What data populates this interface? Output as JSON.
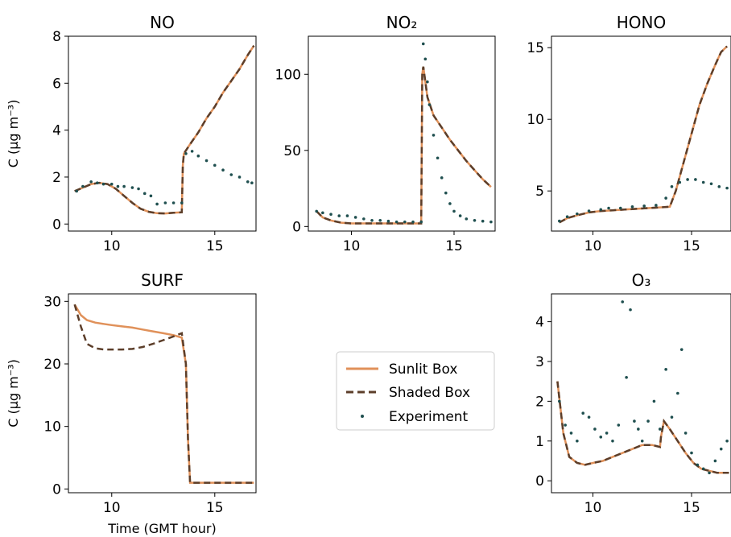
{
  "figure": {
    "time_label": "Time (GMT hour)",
    "legend": {
      "placement": "center",
      "entries": [
        {
          "label": "Sunlit Box",
          "style": "solid",
          "color": "#e0915a"
        },
        {
          "label": "Shaded Box",
          "style": "dashed",
          "color": "#5c3e2a"
        },
        {
          "label": "Experiment",
          "style": "dots",
          "color": "#1f4f4f"
        }
      ]
    }
  },
  "chart_data": [
    {
      "type": "line",
      "title": "NO",
      "ylabel": "C (μg m⁻³)",
      "xlabel": "",
      "xlim": [
        7.9,
        17.0
      ],
      "ylim": [
        -0.3,
        8.0
      ],
      "xticks": [
        10,
        15
      ],
      "yticks": [
        0,
        2,
        4,
        6,
        8
      ],
      "series": [
        {
          "name": "Sunlit Box",
          "x": [
            8.2,
            8.6,
            9.0,
            9.4,
            9.8,
            10.2,
            10.6,
            11.0,
            11.4,
            11.8,
            12.2,
            12.6,
            13.0,
            13.4,
            13.45,
            13.5,
            13.8,
            14.2,
            14.6,
            15.0,
            15.4,
            15.8,
            16.2,
            16.6,
            16.9
          ],
          "y": [
            1.4,
            1.55,
            1.7,
            1.75,
            1.7,
            1.5,
            1.2,
            0.9,
            0.65,
            0.52,
            0.46,
            0.45,
            0.48,
            0.5,
            2.5,
            3.0,
            3.4,
            3.9,
            4.5,
            5.0,
            5.6,
            6.1,
            6.6,
            7.2,
            7.6
          ]
        },
        {
          "name": "Shaded Box",
          "x": [
            8.2,
            8.6,
            9.0,
            9.4,
            9.8,
            10.2,
            10.6,
            11.0,
            11.4,
            11.8,
            12.2,
            12.6,
            13.0,
            13.4,
            13.45,
            13.5,
            13.8,
            14.2,
            14.6,
            15.0,
            15.4,
            15.8,
            16.2,
            16.6,
            16.9
          ],
          "y": [
            1.4,
            1.55,
            1.7,
            1.75,
            1.7,
            1.5,
            1.2,
            0.9,
            0.65,
            0.52,
            0.46,
            0.45,
            0.48,
            0.5,
            2.5,
            3.0,
            3.4,
            3.9,
            4.5,
            5.0,
            5.6,
            6.1,
            6.6,
            7.2,
            7.6
          ]
        },
        {
          "name": "Experiment",
          "x": [
            8.3,
            8.6,
            9.0,
            9.3,
            9.6,
            10.0,
            10.3,
            10.6,
            11.0,
            11.3,
            11.6,
            11.9,
            12.2,
            12.6,
            13.0,
            13.4,
            13.6,
            13.9,
            14.2,
            14.6,
            15.0,
            15.4,
            15.8,
            16.2,
            16.6,
            16.8
          ],
          "y": [
            1.4,
            1.6,
            1.8,
            1.75,
            1.7,
            1.7,
            1.6,
            1.6,
            1.55,
            1.5,
            1.3,
            1.2,
            0.85,
            0.9,
            0.9,
            0.9,
            3.0,
            3.1,
            2.9,
            2.7,
            2.5,
            2.3,
            2.1,
            2.0,
            1.8,
            1.75
          ]
        }
      ]
    },
    {
      "type": "line",
      "title": "NO₂",
      "ylabel": "",
      "xlabel": "",
      "xlim": [
        7.9,
        17.0
      ],
      "ylim": [
        -3,
        125
      ],
      "xticks": [
        10,
        15
      ],
      "yticks": [
        0,
        50,
        100
      ],
      "series": [
        {
          "name": "Sunlit Box",
          "x": [
            8.3,
            8.6,
            9.0,
            9.5,
            10.0,
            10.5,
            11.0,
            11.5,
            12.0,
            12.5,
            13.0,
            13.4,
            13.45,
            13.5,
            13.7,
            14.0,
            14.4,
            14.8,
            15.2,
            15.6,
            16.0,
            16.4,
            16.8
          ],
          "y": [
            10,
            6,
            4,
            2.5,
            2,
            2,
            2,
            2,
            2,
            2,
            2,
            2,
            100,
            105,
            85,
            73,
            65,
            57,
            50,
            43,
            37,
            31,
            26
          ]
        },
        {
          "name": "Shaded Box",
          "x": [
            8.3,
            8.6,
            9.0,
            9.5,
            10.0,
            10.5,
            11.0,
            11.5,
            12.0,
            12.5,
            13.0,
            13.4,
            13.45,
            13.5,
            13.7,
            14.0,
            14.4,
            14.8,
            15.2,
            15.6,
            16.0,
            16.4,
            16.8
          ],
          "y": [
            10,
            6,
            4,
            2.5,
            2,
            2,
            2,
            2,
            2,
            2,
            2,
            2,
            100,
            105,
            85,
            73,
            65,
            57,
            50,
            43,
            37,
            31,
            26
          ]
        },
        {
          "name": "Experiment",
          "x": [
            8.3,
            8.6,
            9.0,
            9.4,
            9.8,
            10.2,
            10.6,
            11.0,
            11.4,
            11.8,
            12.2,
            12.6,
            13.0,
            13.4,
            13.5,
            13.6,
            13.7,
            13.8,
            14.0,
            14.2,
            14.4,
            14.6,
            14.8,
            15.0,
            15.3,
            15.6,
            16.0,
            16.4,
            16.8
          ],
          "y": [
            10,
            9,
            8,
            7,
            7,
            6,
            5,
            4,
            4,
            3.5,
            3,
            3,
            3,
            3,
            120,
            110,
            95,
            80,
            60,
            45,
            32,
            22,
            15,
            10,
            7,
            5,
            4,
            3.5,
            3
          ]
        }
      ]
    },
    {
      "type": "line",
      "title": "HONO",
      "ylabel": "",
      "xlabel": "",
      "xlim": [
        7.9,
        17.0
      ],
      "ylim": [
        2.2,
        15.8
      ],
      "xticks": [
        10,
        15
      ],
      "yticks": [
        5,
        10,
        15
      ],
      "series": [
        {
          "name": "Sunlit Box",
          "x": [
            8.3,
            8.7,
            9.2,
            9.8,
            10.4,
            11.0,
            11.6,
            12.2,
            12.8,
            13.4,
            13.9,
            14.2,
            14.6,
            15.0,
            15.4,
            15.8,
            16.2,
            16.5,
            16.8
          ],
          "y": [
            2.8,
            3.1,
            3.3,
            3.5,
            3.6,
            3.65,
            3.7,
            3.75,
            3.8,
            3.85,
            3.9,
            5.0,
            7.0,
            9.0,
            11.0,
            12.5,
            13.8,
            14.7,
            15.1
          ]
        },
        {
          "name": "Shaded Box",
          "x": [
            8.3,
            8.7,
            9.2,
            9.8,
            10.4,
            11.0,
            11.6,
            12.2,
            12.8,
            13.4,
            13.9,
            14.2,
            14.6,
            15.0,
            15.4,
            15.8,
            16.2,
            16.5,
            16.8
          ],
          "y": [
            2.8,
            3.1,
            3.3,
            3.5,
            3.6,
            3.65,
            3.7,
            3.75,
            3.8,
            3.85,
            3.9,
            5.0,
            7.0,
            9.0,
            11.0,
            12.5,
            13.8,
            14.7,
            15.1
          ]
        },
        {
          "name": "Experiment",
          "x": [
            8.3,
            8.7,
            9.2,
            9.8,
            10.4,
            10.8,
            11.4,
            12.0,
            12.6,
            13.2,
            13.7,
            14.0,
            14.4,
            14.8,
            15.2,
            15.6,
            16.0,
            16.4,
            16.8
          ],
          "y": [
            2.9,
            3.2,
            3.4,
            3.6,
            3.7,
            3.8,
            3.8,
            3.9,
            3.95,
            4.0,
            4.5,
            5.3,
            5.6,
            5.8,
            5.8,
            5.6,
            5.5,
            5.3,
            5.2
          ]
        }
      ]
    },
    {
      "type": "line",
      "title": "SURF",
      "ylabel": "C (μg m⁻³)",
      "xlabel": "Time (GMT hour)",
      "xlim": [
        7.9,
        17.0
      ],
      "ylim": [
        -0.6,
        31.2
      ],
      "xticks": [
        10,
        15
      ],
      "yticks": [
        0,
        10,
        20,
        30
      ],
      "series": [
        {
          "name": "Sunlit Box",
          "x": [
            8.2,
            8.5,
            8.8,
            9.2,
            9.6,
            10.0,
            10.5,
            11.0,
            11.5,
            12.0,
            12.5,
            13.0,
            13.4,
            13.6,
            13.7,
            13.8,
            14.0,
            14.5,
            15.0,
            15.5,
            16.0,
            16.5,
            16.9
          ],
          "y": [
            29.5,
            27.8,
            27.0,
            26.6,
            26.4,
            26.2,
            26.0,
            25.8,
            25.5,
            25.2,
            24.9,
            24.6,
            24.2,
            20.0,
            8.0,
            1.0,
            1.0,
            1.0,
            1.0,
            1.0,
            1.0,
            1.0,
            1.0
          ]
        },
        {
          "name": "Shaded Box",
          "x": [
            8.2,
            8.5,
            8.8,
            9.2,
            9.6,
            10.0,
            10.5,
            11.0,
            11.5,
            12.0,
            12.5,
            13.0,
            13.4,
            13.6,
            13.7,
            13.8,
            14.0,
            14.5,
            15.0,
            15.5,
            16.0,
            16.5,
            16.9
          ],
          "y": [
            29.5,
            26.0,
            23.2,
            22.5,
            22.3,
            22.3,
            22.3,
            22.4,
            22.7,
            23.2,
            23.8,
            24.4,
            24.9,
            20.0,
            8.0,
            1.0,
            1.0,
            1.0,
            1.0,
            1.0,
            1.0,
            1.0,
            1.0
          ]
        }
      ]
    },
    {
      "type": "line",
      "title": "O₃",
      "ylabel": "",
      "xlabel": "",
      "xlim": [
        7.9,
        17.0
      ],
      "ylim": [
        -0.3,
        4.7
      ],
      "xticks": [
        10,
        15
      ],
      "yticks": [
        0,
        1,
        2,
        3,
        4
      ],
      "series": [
        {
          "name": "Sunlit Box",
          "x": [
            8.2,
            8.5,
            8.8,
            9.2,
            9.6,
            10.0,
            10.5,
            11.0,
            11.5,
            12.0,
            12.5,
            13.0,
            13.4,
            13.45,
            13.6,
            13.9,
            14.3,
            14.7,
            15.1,
            15.5,
            15.9,
            16.3,
            16.7,
            16.9
          ],
          "y": [
            2.5,
            1.2,
            0.6,
            0.45,
            0.4,
            0.45,
            0.5,
            0.6,
            0.7,
            0.8,
            0.9,
            0.9,
            0.85,
            1.1,
            1.5,
            1.3,
            1.0,
            0.7,
            0.45,
            0.3,
            0.25,
            0.2,
            0.2,
            0.2
          ]
        },
        {
          "name": "Shaded Box",
          "x": [
            8.2,
            8.5,
            8.8,
            9.2,
            9.6,
            10.0,
            10.5,
            11.0,
            11.5,
            12.0,
            12.5,
            13.0,
            13.4,
            13.45,
            13.6,
            13.9,
            14.3,
            14.7,
            15.1,
            15.5,
            15.9,
            16.3,
            16.7,
            16.9
          ],
          "y": [
            2.5,
            1.2,
            0.6,
            0.45,
            0.4,
            0.45,
            0.5,
            0.6,
            0.7,
            0.8,
            0.9,
            0.9,
            0.85,
            1.1,
            1.5,
            1.3,
            1.0,
            0.7,
            0.45,
            0.3,
            0.25,
            0.2,
            0.2,
            0.2
          ]
        },
        {
          "name": "Experiment",
          "x": [
            8.3,
            8.6,
            8.9,
            9.2,
            9.5,
            9.8,
            10.1,
            10.4,
            10.7,
            11.0,
            11.3,
            11.5,
            11.7,
            11.9,
            12.1,
            12.3,
            12.5,
            12.8,
            13.1,
            13.4,
            13.7,
            14.0,
            14.3,
            14.5,
            14.7,
            15.0,
            15.3,
            15.6,
            15.9,
            16.2,
            16.5,
            16.8
          ],
          "y": [
            2.0,
            1.4,
            1.2,
            1.0,
            1.7,
            1.6,
            1.3,
            1.1,
            1.2,
            1.0,
            1.4,
            4.5,
            2.6,
            4.3,
            1.5,
            1.3,
            1.0,
            1.5,
            2.0,
            1.3,
            2.8,
            1.6,
            2.2,
            3.3,
            1.2,
            0.7,
            0.4,
            0.3,
            0.2,
            0.5,
            0.8,
            1.0
          ]
        }
      ]
    }
  ]
}
